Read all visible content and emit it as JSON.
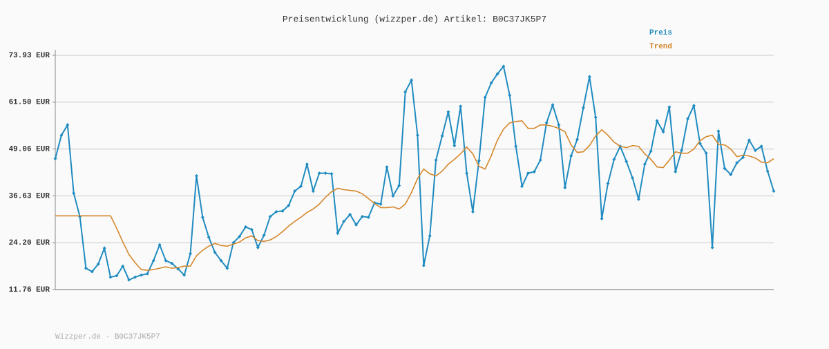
{
  "chart_data": {
    "type": "line",
    "title": "Preisentwicklung (wizzper.de) Artikel: B0C37JK5P7",
    "footer": "Wizzper.de - B0C37JK5P7",
    "legend": "top-right",
    "grid": true,
    "ylim": [
      11.76,
      73.93
    ],
    "yticks": [
      {
        "value": 11.76,
        "label": "11.76 EUR"
      },
      {
        "value": 24.2,
        "label": "24.20 EUR"
      },
      {
        "value": 36.63,
        "label": "36.63 EUR"
      },
      {
        "value": 49.06,
        "label": "49.06 EUR"
      },
      {
        "value": 61.5,
        "label": "61.50 EUR"
      },
      {
        "value": 73.93,
        "label": "73.93 EUR"
      }
    ],
    "series": [
      {
        "name": "Preis",
        "color": "#1f8bc0",
        "markers": true,
        "values": [
          46.49,
          52.71,
          55.45,
          37.35,
          31.14,
          17.43,
          16.51,
          18.52,
          22.73,
          15.05,
          15.42,
          17.98,
          14.32,
          15.05,
          15.6,
          15.96,
          19.44,
          23.64,
          19.44,
          18.71,
          17.24,
          15.6,
          21.27,
          41.92,
          30.95,
          25.65,
          21.63,
          19.44,
          17.43,
          24.19,
          25.84,
          28.39,
          27.66,
          22.91,
          26.2,
          31.14,
          32.42,
          32.6,
          34.06,
          37.9,
          39.18,
          45.03,
          37.9,
          42.65,
          42.65,
          42.47,
          26.75,
          29.86,
          31.69,
          28.94,
          31.14,
          30.95,
          34.79,
          34.43,
          44.3,
          36.62,
          39.36,
          64.22,
          67.33,
          52.71,
          18.16,
          26.02,
          46.13,
          52.52,
          58.92,
          49.96,
          60.38,
          42.65,
          32.42,
          45.94,
          62.76,
          66.6,
          68.98,
          70.99,
          63.31,
          49.78,
          39.18,
          42.65,
          43.02,
          46.13,
          56,
          60.75,
          55.45,
          38.81,
          47.22,
          51.61,
          60.02,
          68.25,
          57.46,
          30.59,
          39.91,
          46.31,
          49.78,
          45.76,
          41.37,
          35.71,
          45.03,
          48.5,
          56.55,
          53.62,
          60.2,
          43.02,
          48.69,
          57.09,
          60.57,
          50.51,
          47.95,
          22.91,
          53.8,
          43.93,
          42.29,
          45.4,
          46.86,
          51.43,
          48.69,
          49.78,
          43.2,
          37.9
        ]
      },
      {
        "name": "Trend",
        "color": "#d4862a",
        "markers": false,
        "values": [
          31.32,
          31.32,
          31.32,
          31.32,
          31.32,
          31.32,
          31.32,
          31.32,
          31.32,
          31.32,
          28.03,
          24.37,
          21.08,
          18.89,
          17.06,
          16.88,
          17.06,
          17.43,
          17.79,
          17.43,
          17.61,
          17.98,
          17.98,
          20.72,
          22.18,
          23.28,
          24.01,
          23.46,
          23.28,
          23.82,
          24.37,
          25.47,
          26.02,
          24.74,
          24.56,
          24.92,
          25.84,
          27.12,
          28.58,
          29.86,
          30.95,
          32.23,
          33.15,
          34.43,
          36.26,
          37.72,
          38.63,
          38.27,
          38.08,
          37.9,
          37.17,
          35.89,
          34.61,
          33.51,
          33.51,
          33.7,
          33.15,
          34.43,
          37.53,
          41.19,
          43.75,
          42.47,
          41.92,
          43.2,
          45.03,
          46.31,
          47.77,
          49.6,
          47.77,
          44.48,
          43.75,
          47.22,
          51.43,
          54.35,
          56,
          56.36,
          56.55,
          54.54,
          54.54,
          55.45,
          55.45,
          55.08,
          54.54,
          53.62,
          50.15,
          48.14,
          48.32,
          49.96,
          52.52,
          54.17,
          52.71,
          50.88,
          49.78,
          49.42,
          49.96,
          49.78,
          47.77,
          46.31,
          44.3,
          44.12,
          46.13,
          48.32,
          47.95,
          47.95,
          49.05,
          51.24,
          52.34,
          52.71,
          50.33,
          50.15,
          49.05,
          47.04,
          47.41,
          47.22,
          46.67,
          45.58,
          45.4,
          46.49
        ]
      }
    ]
  }
}
